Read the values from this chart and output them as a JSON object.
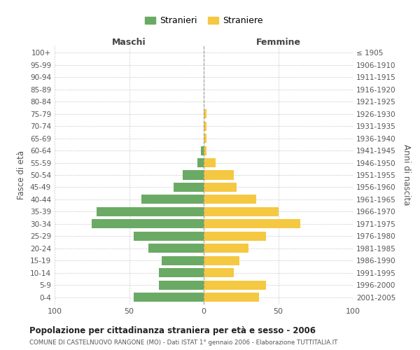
{
  "age_groups": [
    "0-4",
    "5-9",
    "10-14",
    "15-19",
    "20-24",
    "25-29",
    "30-34",
    "35-39",
    "40-44",
    "45-49",
    "50-54",
    "55-59",
    "60-64",
    "65-69",
    "70-74",
    "75-79",
    "80-84",
    "85-89",
    "90-94",
    "95-99",
    "100+"
  ],
  "birth_years": [
    "2001-2005",
    "1996-2000",
    "1991-1995",
    "1986-1990",
    "1981-1985",
    "1976-1980",
    "1971-1975",
    "1966-1970",
    "1961-1965",
    "1956-1960",
    "1951-1955",
    "1946-1950",
    "1941-1945",
    "1936-1940",
    "1931-1935",
    "1926-1930",
    "1921-1925",
    "1916-1920",
    "1911-1915",
    "1906-1910",
    "≤ 1905"
  ],
  "males": [
    47,
    30,
    30,
    28,
    37,
    47,
    75,
    72,
    42,
    20,
    14,
    4,
    2,
    0,
    0,
    0,
    0,
    0,
    0,
    0,
    0
  ],
  "females": [
    37,
    42,
    20,
    24,
    30,
    42,
    65,
    50,
    35,
    22,
    20,
    8,
    2,
    2,
    2,
    2,
    0,
    0,
    0,
    0,
    0
  ],
  "male_color": "#6aaa64",
  "female_color": "#f5c842",
  "title_main": "Popolazione per cittadinanza straniera per età e sesso - 2006",
  "title_sub": "COMUNE DI CASTELNUOVO RANGONE (MO) - Dati ISTAT 1° gennaio 2006 - Elaborazione TUTTITALIA.IT",
  "xlabel_left": "Maschi",
  "xlabel_right": "Femmine",
  "ylabel_left": "Fasce di età",
  "ylabel_right": "Anni di nascita",
  "legend_male": "Stranieri",
  "legend_female": "Straniere",
  "xlim": 100,
  "background_color": "#ffffff",
  "grid_color": "#cccccc"
}
